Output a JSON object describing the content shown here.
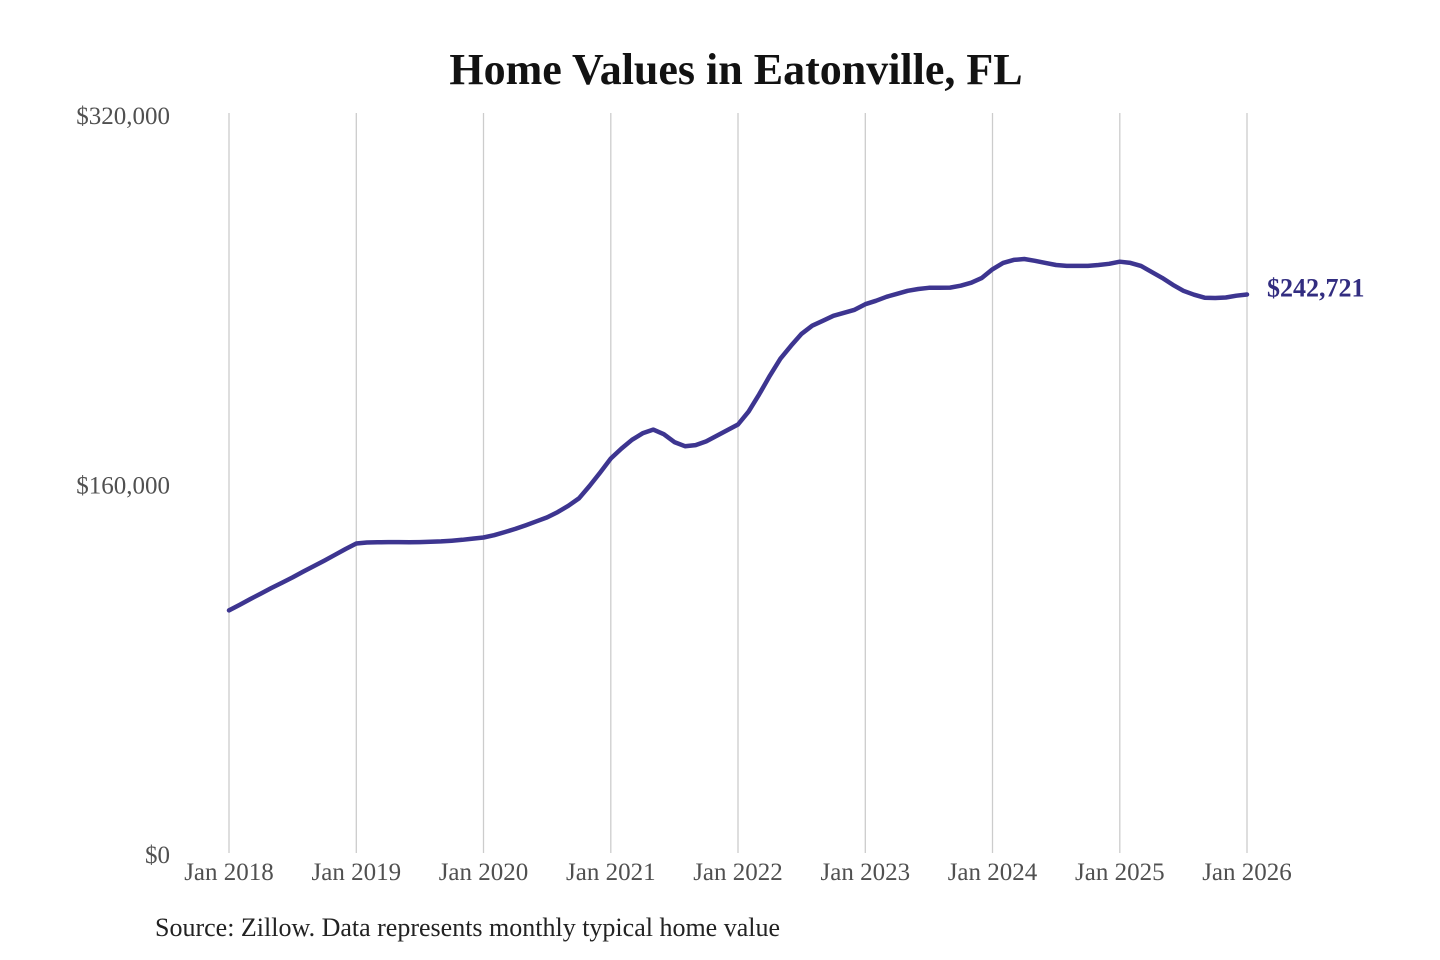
{
  "title": "Home Values in Eatonville, FL",
  "source_note": "Source: Zillow. Data represents monthly typical home value",
  "colors": {
    "line": "#3d3590",
    "grid": "#cccccc",
    "title": "#121212",
    "axis_label": "#505050",
    "end_label": "#322d80",
    "background": "#ffffff"
  },
  "chart_data": {
    "type": "line",
    "title": "Home Values in Eatonville, FL",
    "xlabel": "",
    "ylabel": "",
    "ylim": [
      0,
      320000
    ],
    "grid": "vertical-only",
    "legend": "none",
    "y_ticks": [
      0,
      160000,
      320000
    ],
    "y_tick_labels": [
      "$0",
      "$160,000",
      "$320,000"
    ],
    "x_tick_labels": [
      "Jan 2018",
      "Jan 2019",
      "Jan 2020",
      "Jan 2021",
      "Jan 2022",
      "Jan 2023",
      "Jan 2024",
      "Jan 2025",
      "Jan 2026"
    ],
    "x": [
      "2018-01",
      "2018-02",
      "2018-03",
      "2018-04",
      "2018-05",
      "2018-06",
      "2018-07",
      "2018-08",
      "2018-09",
      "2018-10",
      "2018-11",
      "2018-12",
      "2019-01",
      "2019-02",
      "2019-03",
      "2019-04",
      "2019-05",
      "2019-06",
      "2019-07",
      "2019-08",
      "2019-09",
      "2019-10",
      "2019-11",
      "2019-12",
      "2020-01",
      "2020-02",
      "2020-03",
      "2020-04",
      "2020-05",
      "2020-06",
      "2020-07",
      "2020-08",
      "2020-09",
      "2020-10",
      "2020-11",
      "2020-12",
      "2021-01",
      "2021-02",
      "2021-03",
      "2021-04",
      "2021-05",
      "2021-06",
      "2021-07",
      "2021-08",
      "2021-09",
      "2021-10",
      "2021-11",
      "2021-12",
      "2022-01",
      "2022-02",
      "2022-03",
      "2022-04",
      "2022-05",
      "2022-06",
      "2022-07",
      "2022-08",
      "2022-09",
      "2022-10",
      "2022-11",
      "2022-12",
      "2023-01",
      "2023-02",
      "2023-03",
      "2023-04",
      "2023-05",
      "2023-06",
      "2023-07",
      "2023-08",
      "2023-09",
      "2023-10",
      "2023-11",
      "2023-12",
      "2024-01",
      "2024-02",
      "2024-03",
      "2024-04",
      "2024-05",
      "2024-06",
      "2024-07",
      "2024-08",
      "2024-09",
      "2024-10",
      "2024-11",
      "2024-12",
      "2025-01",
      "2025-02",
      "2025-03",
      "2025-04",
      "2025-05",
      "2025-06",
      "2025-07",
      "2025-08",
      "2025-09",
      "2025-10",
      "2025-11",
      "2025-12",
      "2026-01"
    ],
    "values": [
      105900,
      108300,
      110800,
      113200,
      115600,
      117900,
      120200,
      122700,
      125100,
      127500,
      130000,
      132500,
      134900,
      135300,
      135400,
      135500,
      135500,
      135400,
      135500,
      135600,
      135800,
      136100,
      136500,
      137000,
      137500,
      138500,
      139800,
      141200,
      142800,
      144500,
      146200,
      148500,
      151200,
      154400,
      159800,
      165600,
      171700,
      176000,
      179800,
      182600,
      184200,
      182200,
      178800,
      177000,
      177500,
      179100,
      181500,
      184000,
      186400,
      192000,
      199500,
      207500,
      214900,
      220500,
      225700,
      229200,
      231300,
      233500,
      234800,
      236100,
      238500,
      240000,
      241700,
      243000,
      244300,
      245100,
      245600,
      245600,
      245700,
      246500,
      247800,
      249900,
      253600,
      256400,
      257700,
      258100,
      257300,
      256400,
      255500,
      255100,
      255100,
      255100,
      255500,
      256000,
      256900,
      256400,
      255100,
      252500,
      249900,
      246900,
      244300,
      242600,
      241300,
      241200,
      241400,
      242200,
      242721
    ],
    "annotation": {
      "text": "$242,721",
      "value": 242721
    }
  }
}
